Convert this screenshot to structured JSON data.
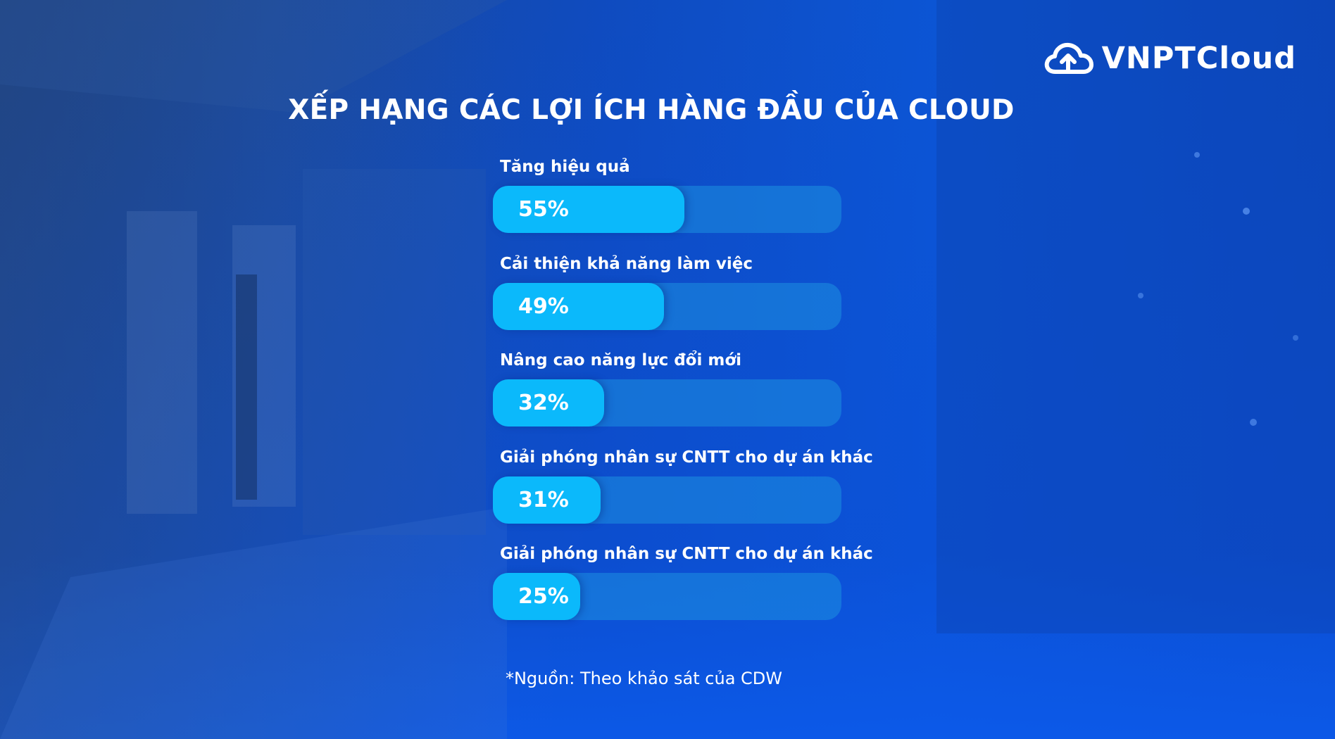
{
  "logo": {
    "text": "VNPTCloud",
    "icon": "cloud-upload-icon"
  },
  "colors": {
    "fill": "#0bb9fb",
    "track": "#1d8fe0",
    "background": "#0c4fcf"
  },
  "chart_data": {
    "type": "bar",
    "orientation": "horizontal",
    "title": "XẾP HẠNG CÁC LỢI ÍCH HÀNG ĐẦU CỦA CLOUD",
    "categories": [
      "Tăng hiệu quả",
      "Cải thiện khả năng làm việc",
      "Nâng cao năng lực đổi mới",
      "Giải phóng nhân sự CNTT cho dự án khác",
      "Giải phóng nhân sự CNTT cho dự án khác"
    ],
    "values": [
      55,
      49,
      32,
      31,
      25
    ],
    "value_labels": [
      "55%",
      "49%",
      "32%",
      "31%",
      "25%"
    ],
    "unit": "%",
    "xlim": [
      0,
      100
    ]
  },
  "source": "*Nguồn: Theo khảo sát của CDW"
}
